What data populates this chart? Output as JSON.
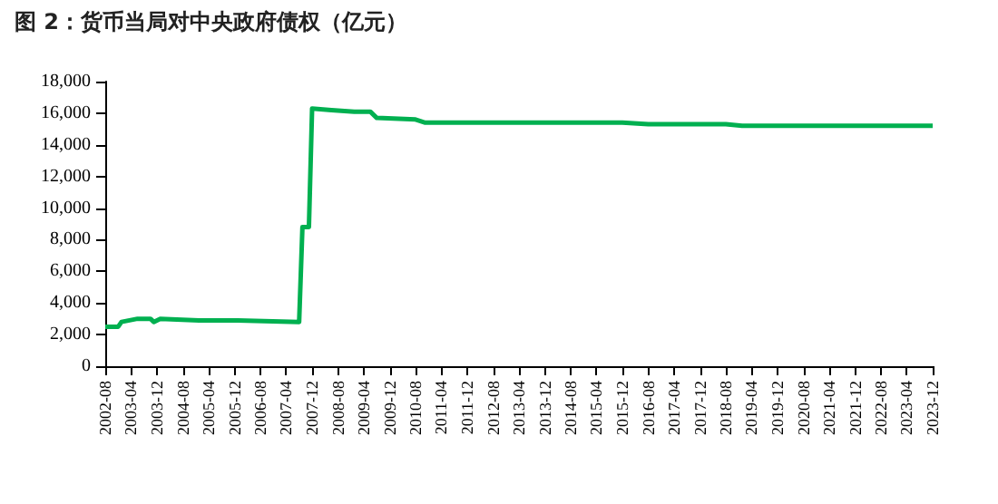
{
  "chart_data": {
    "type": "line",
    "title": "图 2：货币当局对中央政府债权（亿元）",
    "series": [
      {
        "color": "#00b050",
        "x": [
          "2002-08",
          "2002-12",
          "2003-01",
          "2003-06",
          "2003-10",
          "2003-11",
          "2004-01",
          "2005-01",
          "2006-01",
          "2007-08",
          "2007-09",
          "2007-11",
          "2007-12",
          "2008-06",
          "2009-01",
          "2009-06",
          "2009-08",
          "2010-08",
          "2010-11",
          "2012-08",
          "2015-12",
          "2016-08",
          "2018-08",
          "2019-01",
          "2023-12"
        ],
        "values": [
          2500,
          2500,
          2800,
          3000,
          3000,
          2800,
          3000,
          2900,
          2900,
          2800,
          8800,
          8800,
          16300,
          16200,
          16100,
          16100,
          15700,
          15600,
          15400,
          15400,
          15400,
          15300,
          15300,
          15200,
          15200
        ]
      }
    ],
    "xlim": [
      "2002-08",
      "2023-12"
    ],
    "xticks": [
      "2002-08",
      "2003-04",
      "2003-12",
      "2004-08",
      "2005-04",
      "2005-12",
      "2006-08",
      "2007-04",
      "2007-12",
      "2008-08",
      "2009-04",
      "2009-12",
      "2010-08",
      "2011-04",
      "2011-12",
      "2012-08",
      "2013-04",
      "2013-12",
      "2014-08",
      "2015-04",
      "2015-12",
      "2016-08",
      "2017-04",
      "2017-12",
      "2018-08",
      "2019-04",
      "2019-12",
      "2020-08",
      "2021-04",
      "2021-12",
      "2022-08",
      "2023-04",
      "2023-12"
    ],
    "ylim": [
      0,
      18000
    ],
    "yticks": [
      0,
      {
        "value": 2000,
        "label": "2,000"
      },
      {
        "value": 4000,
        "label": "4,000"
      },
      {
        "value": 6000,
        "label": "6,000"
      },
      {
        "value": 8000,
        "label": "8,000"
      },
      {
        "value": 10000,
        "label": "10,000"
      },
      {
        "value": 12000,
        "label": "12,000"
      },
      {
        "value": 14000,
        "label": "14,000"
      },
      {
        "value": 16000,
        "label": "16,000"
      },
      {
        "value": 18000,
        "label": "18,000"
      }
    ],
    "grid": false,
    "marker": "none",
    "line_style": "solid"
  }
}
